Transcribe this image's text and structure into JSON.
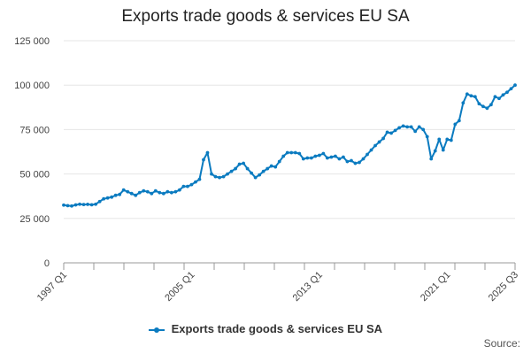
{
  "chart_data": {
    "type": "line",
    "title": "Exports trade goods & services EU SA",
    "xlabel": "",
    "ylabel": "",
    "ylim": [
      0,
      125000
    ],
    "yticks": [
      "0",
      "25 000",
      "50 000",
      "75 000",
      "100 000",
      "125 000"
    ],
    "xtick_labels": [
      "1997 Q1",
      "2005 Q1",
      "2013 Q1",
      "2021 Q1",
      "2025 Q3"
    ],
    "grid": true,
    "legend_position": "bottom-center",
    "series": [
      {
        "name": "Exports trade goods & services EU SA",
        "color": "#0b7bc0",
        "values": [
          32500,
          32200,
          32000,
          32600,
          33000,
          32800,
          32900,
          32700,
          33000,
          34500,
          36000,
          36500,
          37000,
          38000,
          38500,
          41000,
          40000,
          39000,
          38000,
          39500,
          40500,
          40000,
          39000,
          40500,
          39500,
          39000,
          40000,
          39500,
          40000,
          41000,
          43000,
          43000,
          44000,
          45500,
          47000,
          58000,
          62000,
          50000,
          48500,
          48000,
          48500,
          50000,
          51500,
          53000,
          55500,
          56000,
          53000,
          50500,
          48000,
          49500,
          51500,
          53000,
          54500,
          54000,
          57000,
          60000,
          62000,
          62000,
          62000,
          61500,
          58500,
          59000,
          59000,
          60000,
          60500,
          61500,
          59000,
          59500,
          60000,
          58500,
          59500,
          57000,
          57500,
          56000,
          56500,
          58500,
          61000,
          63500,
          66000,
          68000,
          70000,
          73500,
          73000,
          74500,
          76000,
          77000,
          76500,
          76500,
          74000,
          76500,
          75000,
          71000,
          58500,
          63000,
          69500,
          63500,
          69500,
          69000,
          78000,
          80000,
          90000,
          95000,
          94000,
          93500,
          89500,
          88000,
          87000,
          89000,
          93500,
          92500,
          94500,
          96000,
          98000,
          100000
        ]
      }
    ]
  },
  "source_label": "Source:"
}
